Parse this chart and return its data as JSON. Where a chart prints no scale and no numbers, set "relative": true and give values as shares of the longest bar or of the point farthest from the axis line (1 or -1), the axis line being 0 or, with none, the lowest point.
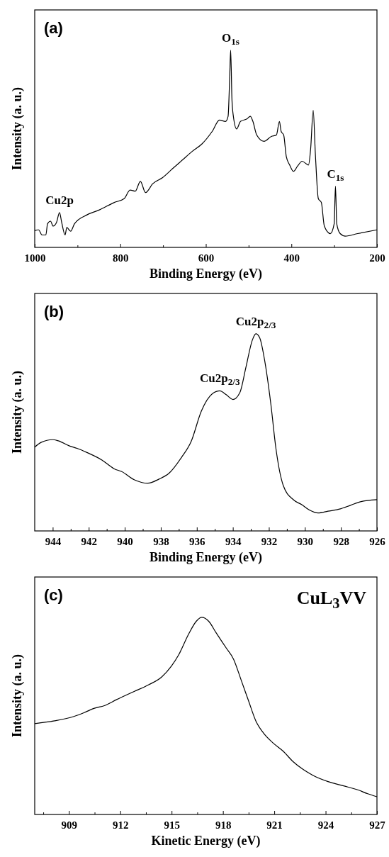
{
  "chart_data": [
    {
      "type": "line",
      "title": "(a)",
      "xlabel": "Binding Energy (eV)",
      "ylabel": "Intensity (a. u.)",
      "relative": true,
      "xlim": [
        1000,
        200
      ],
      "xticks": [
        1000,
        {
          "value": 900,
          "label": null
        },
        800,
        {
          "value": 700,
          "label": null
        },
        600,
        {
          "value": 500,
          "label": null
        },
        400,
        {
          "value": 300,
          "label": null
        },
        200
      ],
      "series": [
        {
          "color": "#000000",
          "x": [
            1000,
            991,
            983,
            974,
            970,
            963,
            957,
            949,
            942,
            937,
            929,
            925,
            916,
            907,
            878,
            849,
            814,
            791,
            777,
            765,
            753,
            741,
            724,
            701,
            678,
            655,
            632,
            609,
            585,
            568,
            554,
            548,
            544,
            542,
            539,
            536,
            528,
            519,
            504,
            496,
            490,
            481,
            464,
            447,
            435,
            428,
            424,
            418,
            412,
            404,
            395,
            386,
            375,
            360,
            355,
            349,
            344,
            337,
            330,
            323,
            309,
            300,
            297,
            294,
            286,
            274,
            245,
            200
          ],
          "values": [
            0.085,
            0.089,
            0.063,
            0.063,
            0.12,
            0.133,
            0.108,
            0.127,
            0.177,
            0.127,
            0.063,
            0.101,
            0.082,
            0.12,
            0.165,
            0.19,
            0.228,
            0.247,
            0.291,
            0.285,
            0.335,
            0.278,
            0.323,
            0.354,
            0.399,
            0.443,
            0.487,
            0.525,
            0.589,
            0.646,
            0.639,
            0.665,
            0.88,
            1.0,
            0.753,
            0.671,
            0.601,
            0.639,
            0.652,
            0.665,
            0.639,
            0.57,
            0.538,
            0.563,
            0.57,
            0.639,
            0.589,
            0.57,
            0.462,
            0.418,
            0.386,
            0.411,
            0.437,
            0.418,
            0.5,
            0.696,
            0.475,
            0.247,
            0.228,
            0.108,
            0.07,
            0.12,
            0.31,
            0.12,
            0.07,
            0.057,
            0.07,
            0.089
          ]
        }
      ],
      "annotations": [
        {
          "text": "O$_{1s}$",
          "x": 542,
          "y": 1.0
        },
        {
          "text": "C$_{1s}$",
          "x": 297,
          "y": 0.31
        },
        {
          "text": "Cu2p",
          "x": 942,
          "y": 0.177
        }
      ]
    },
    {
      "type": "line",
      "title": "(b)",
      "xlabel": "Binding Energy (eV)",
      "ylabel": "Intensity (a. u.)",
      "relative": true,
      "xlim": [
        945,
        926
      ],
      "xticks": [
        944,
        {
          "value": 943,
          "label": null
        },
        942,
        {
          "value": 941,
          "label": null
        },
        940,
        {
          "value": 939,
          "label": null
        },
        938,
        {
          "value": 937,
          "label": null
        },
        936,
        {
          "value": 935,
          "label": null
        },
        934,
        {
          "value": 933,
          "label": null
        },
        932,
        {
          "value": 931,
          "label": null
        },
        930,
        {
          "value": 929,
          "label": null
        },
        928,
        {
          "value": 927,
          "label": null
        },
        926
      ],
      "series": [
        {
          "color": "#000000",
          "x": [
            945,
            944.65,
            944,
            943.69,
            943.07,
            942.65,
            942.1,
            941.27,
            940.58,
            940.17,
            939.48,
            938.72,
            938.1,
            937.55,
            936.86,
            936.31,
            935.75,
            935.13,
            934.72,
            934.37,
            933.99,
            933.61,
            933.27,
            932.92,
            932.72,
            932.51,
            932.24,
            931.89,
            931.61,
            931.2,
            930.65,
            930.17,
            929.75,
            929.27,
            928.72,
            928.03,
            927.47,
            926.92,
            926
          ],
          "values": [
            0.425,
            0.449,
            0.463,
            0.457,
            0.431,
            0.419,
            0.398,
            0.36,
            0.315,
            0.301,
            0.26,
            0.242,
            0.263,
            0.292,
            0.372,
            0.455,
            0.608,
            0.697,
            0.711,
            0.691,
            0.667,
            0.702,
            0.832,
            0.968,
            1.0,
            0.98,
            0.868,
            0.643,
            0.419,
            0.23,
            0.159,
            0.133,
            0.106,
            0.091,
            0.1,
            0.112,
            0.13,
            0.148,
            0.159
          ]
        }
      ],
      "annotations": [
        {
          "text": "Cu2p$_{2/3}$",
          "x": 934.72,
          "y": 0.711
        },
        {
          "text": "Cu2p$_{2/3}$",
          "x": 932.72,
          "y": 1.0
        }
      ]
    },
    {
      "type": "line",
      "title": "(c)",
      "xlabel": "Kinetic Energy (eV)",
      "ylabel": "Intensity (a. u.)",
      "relative": true,
      "xlim": [
        907,
        927
      ],
      "xticks": [
        {
          "value": 907.5,
          "label": null
        },
        909,
        {
          "value": 910.5,
          "label": null
        },
        912,
        {
          "value": 913.5,
          "label": null
        },
        915,
        {
          "value": 916.5,
          "label": null
        },
        918,
        {
          "value": 919.5,
          "label": null
        },
        921,
        {
          "value": 922.5,
          "label": null
        },
        924,
        {
          "value": 925.5,
          "label": null
        },
        927
      ],
      "series": [
        {
          "color": "#000000",
          "x": [
            907,
            908.16,
            909.32,
            909.9,
            910.49,
            911.07,
            911.79,
            912.81,
            913.68,
            914.41,
            914.99,
            915.42,
            916.0,
            916.44,
            916.76,
            917.17,
            917.6,
            918.18,
            918.62,
            919.06,
            919.49,
            919.93,
            920.36,
            920.94,
            921.52,
            922.1,
            922.69,
            923.27,
            924.14,
            925.01,
            925.88,
            926.46,
            927
          ],
          "values": [
            0.461,
            0.475,
            0.498,
            0.517,
            0.539,
            0.552,
            0.583,
            0.624,
            0.659,
            0.697,
            0.753,
            0.811,
            0.916,
            0.98,
            1.0,
            0.98,
            0.922,
            0.846,
            0.788,
            0.683,
            0.578,
            0.473,
            0.414,
            0.362,
            0.321,
            0.268,
            0.228,
            0.198,
            0.167,
            0.146,
            0.125,
            0.105,
            0.09
          ]
        }
      ],
      "annotations": [
        "CuL$_{3}$VV"
      ]
    }
  ]
}
